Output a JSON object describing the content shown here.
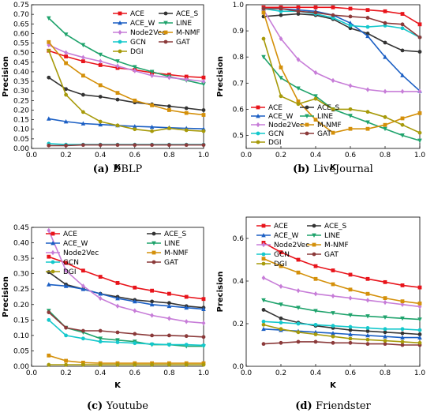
{
  "chart_data": [
    {
      "type": "line",
      "caption_letter": "(a)",
      "caption_text": "DBLP",
      "xlabel": "K",
      "ylabel": "Precision",
      "xlim": [
        0.0,
        1.0
      ],
      "ylim": [
        0.0,
        0.75
      ],
      "xticks": [
        "0.0",
        "0.2",
        "0.4",
        "0.6",
        "0.8",
        "1.0"
      ],
      "yticks": [
        "0.00",
        "0.05",
        "0.10",
        "0.15",
        "0.20",
        "0.25",
        "0.30",
        "0.35",
        "0.40",
        "0.45",
        "0.50",
        "0.55",
        "0.60",
        "0.65",
        "0.70",
        "0.75"
      ],
      "ytick_values": [
        0.0,
        0.05,
        0.1,
        0.15,
        0.2,
        0.25,
        0.3,
        0.35,
        0.4,
        0.45,
        0.5,
        0.55,
        0.6,
        0.65,
        0.7,
        0.75
      ],
      "legend_position": "top-right",
      "x": [
        0.1,
        0.2,
        0.3,
        0.4,
        0.5,
        0.6,
        0.7,
        0.8,
        0.9,
        1.0
      ],
      "series": [
        {
          "name": "ACE",
          "color": "#e8141b",
          "values": [
            0.51,
            0.48,
            0.455,
            0.435,
            0.42,
            0.41,
            0.395,
            0.385,
            0.375,
            0.37
          ]
        },
        {
          "name": "ACE_S",
          "color": "#333333",
          "values": [
            0.37,
            0.31,
            0.28,
            0.27,
            0.255,
            0.24,
            0.23,
            0.22,
            0.21,
            0.2
          ]
        },
        {
          "name": "ACE_W",
          "color": "#1b5fc4",
          "values": [
            0.155,
            0.14,
            0.13,
            0.125,
            0.12,
            0.115,
            0.112,
            0.108,
            0.105,
            0.102
          ]
        },
        {
          "name": "LINE",
          "color": "#1fa36c",
          "values": [
            0.68,
            0.595,
            0.54,
            0.49,
            0.455,
            0.425,
            0.4,
            0.375,
            0.355,
            0.335
          ]
        },
        {
          "name": "Node2Vec",
          "color": "#c77dd8",
          "values": [
            0.54,
            0.5,
            0.475,
            0.455,
            0.43,
            0.405,
            0.38,
            0.37,
            0.36,
            0.35
          ]
        },
        {
          "name": "M-NMF",
          "color": "#d4900a",
          "values": [
            0.555,
            0.445,
            0.38,
            0.33,
            0.29,
            0.25,
            0.225,
            0.2,
            0.185,
            0.175
          ]
        },
        {
          "name": "GCN",
          "color": "#14c8cc",
          "values": [
            0.025,
            0.02,
            0.02,
            0.02,
            0.02,
            0.02,
            0.02,
            0.02,
            0.02,
            0.02
          ]
        },
        {
          "name": "GAT",
          "color": "#8b3a3a",
          "values": [
            0.015,
            0.015,
            0.018,
            0.018,
            0.018,
            0.018,
            0.018,
            0.018,
            0.018,
            0.018
          ]
        },
        {
          "name": "DGI",
          "color": "#a79a0a",
          "values": [
            0.51,
            0.28,
            0.19,
            0.14,
            0.12,
            0.1,
            0.09,
            0.105,
            0.095,
            0.09
          ]
        }
      ]
    },
    {
      "type": "line",
      "caption_letter": "(b)",
      "caption_text": "LiveJournal",
      "xlabel": "K",
      "ylabel": "Precision",
      "xlim": [
        0.0,
        1.0
      ],
      "ylim": [
        0.45,
        1.0
      ],
      "xticks": [
        "0.0",
        "0.2",
        "0.4",
        "0.6",
        "0.8",
        "1.0"
      ],
      "yticks": [
        "0.5",
        "0.6",
        "0.7",
        "0.8",
        "0.9",
        "1.0"
      ],
      "ytick_values": [
        0.5,
        0.6,
        0.7,
        0.8,
        0.9,
        1.0
      ],
      "legend_position": "bottom-left",
      "x": [
        0.1,
        0.2,
        0.3,
        0.4,
        0.5,
        0.6,
        0.7,
        0.8,
        0.9,
        1.0
      ],
      "series": [
        {
          "name": "ACE",
          "color": "#e8141b",
          "values": [
            0.99,
            0.99,
            0.99,
            0.99,
            0.99,
            0.985,
            0.98,
            0.975,
            0.965,
            0.925
          ]
        },
        {
          "name": "ACE_S",
          "color": "#333333",
          "values": [
            0.955,
            0.96,
            0.965,
            0.96,
            0.945,
            0.91,
            0.89,
            0.855,
            0.825,
            0.82
          ]
        },
        {
          "name": "ACE_W",
          "color": "#1b5fc4",
          "values": [
            0.985,
            0.985,
            0.98,
            0.975,
            0.96,
            0.93,
            0.88,
            0.8,
            0.73,
            0.67
          ]
        },
        {
          "name": "LINE",
          "color": "#1fa36c",
          "values": [
            0.8,
            0.72,
            0.68,
            0.65,
            0.6,
            0.575,
            0.55,
            0.525,
            0.5,
            0.48
          ]
        },
        {
          "name": "Node2Vec",
          "color": "#c77dd8",
          "values": [
            0.98,
            0.87,
            0.79,
            0.74,
            0.71,
            0.69,
            0.675,
            0.668,
            0.668,
            0.668
          ]
        },
        {
          "name": "M-NMF",
          "color": "#d4900a",
          "values": [
            0.97,
            0.76,
            0.63,
            0.56,
            0.51,
            0.525,
            0.525,
            0.54,
            0.565,
            0.585
          ]
        },
        {
          "name": "GCN",
          "color": "#14c8cc",
          "values": [
            0.985,
            0.975,
            0.975,
            0.965,
            0.95,
            0.92,
            0.915,
            0.92,
            0.91,
            0.875
          ]
        },
        {
          "name": "GAT",
          "color": "#8b3a3a",
          "values": [
            0.985,
            0.985,
            0.975,
            0.97,
            0.96,
            0.955,
            0.95,
            0.93,
            0.925,
            0.875
          ]
        },
        {
          "name": "DGI",
          "color": "#a79a0a",
          "values": [
            0.87,
            0.65,
            0.62,
            0.64,
            0.6,
            0.6,
            0.59,
            0.57,
            0.54,
            0.51
          ]
        }
      ]
    },
    {
      "type": "line",
      "caption_letter": "(c)",
      "caption_text": "Youtube",
      "xlabel": "K",
      "ylabel": "Precision",
      "xlim": [
        0.0,
        1.0
      ],
      "ylim": [
        0.0,
        0.45
      ],
      "xticks": [
        "0.0",
        "0.2",
        "0.4",
        "0.6",
        "0.8",
        "1.0"
      ],
      "yticks": [
        "0.00",
        "0.05",
        "0.10",
        "0.15",
        "0.20",
        "0.25",
        "0.30",
        "0.35",
        "0.40",
        "0.45"
      ],
      "ytick_values": [
        0.0,
        0.05,
        0.1,
        0.15,
        0.2,
        0.25,
        0.3,
        0.35,
        0.4,
        0.45
      ],
      "legend_position": "top-right",
      "x": [
        0.1,
        0.2,
        0.3,
        0.4,
        0.5,
        0.6,
        0.7,
        0.8,
        0.9,
        1.0
      ],
      "series": [
        {
          "name": "ACE",
          "color": "#e8141b",
          "values": [
            0.355,
            0.335,
            0.31,
            0.29,
            0.27,
            0.255,
            0.245,
            0.235,
            0.225,
            0.218
          ]
        },
        {
          "name": "ACE_S",
          "color": "#333333",
          "values": [
            0.305,
            0.265,
            0.25,
            0.235,
            0.225,
            0.215,
            0.21,
            0.205,
            0.195,
            0.19
          ]
        },
        {
          "name": "ACE_W",
          "color": "#1b5fc4",
          "values": [
            0.265,
            0.26,
            0.25,
            0.235,
            0.22,
            0.21,
            0.2,
            0.195,
            0.19,
            0.185
          ]
        },
        {
          "name": "LINE",
          "color": "#1fa36c",
          "values": [
            0.18,
            0.125,
            0.11,
            0.09,
            0.085,
            0.08,
            0.07,
            0.07,
            0.065,
            0.065
          ]
        },
        {
          "name": "Node2Vec",
          "color": "#c77dd8",
          "values": [
            0.44,
            0.31,
            0.26,
            0.22,
            0.195,
            0.18,
            0.165,
            0.155,
            0.145,
            0.14
          ]
        },
        {
          "name": "M-NMF",
          "color": "#d4900a",
          "values": [
            0.035,
            0.018,
            0.012,
            0.01,
            0.01,
            0.01,
            0.01,
            0.01,
            0.01,
            0.01
          ]
        },
        {
          "name": "GCN",
          "color": "#14c8cc",
          "values": [
            0.15,
            0.1,
            0.09,
            0.08,
            0.078,
            0.075,
            0.072,
            0.07,
            0.07,
            0.068
          ]
        },
        {
          "name": "GAT",
          "color": "#8b3a3a",
          "values": [
            0.175,
            0.125,
            0.115,
            0.115,
            0.11,
            0.105,
            0.1,
            0.1,
            0.098,
            0.095
          ]
        },
        {
          "name": "DGI",
          "color": "#a79a0a",
          "values": [
            0.005,
            0.005,
            0.005,
            0.005,
            0.005,
            0.005,
            0.005,
            0.005,
            0.005,
            0.005
          ]
        }
      ]
    },
    {
      "type": "line",
      "caption_letter": "(d)",
      "caption_text": "Friendster",
      "xlabel": "K",
      "ylabel": "Precision",
      "xlim": [
        0.0,
        1.0
      ],
      "ylim": [
        0.0,
        0.7
      ],
      "xticks": [
        "0.0",
        "0.2",
        "0.4",
        "0.6",
        "0.8",
        "1.0"
      ],
      "yticks": [
        "0.0",
        "0.2",
        "0.4",
        "0.6"
      ],
      "ytick_values": [
        0.0,
        0.2,
        0.4,
        0.6
      ],
      "legend_position": "top-right",
      "x": [
        0.1,
        0.2,
        0.3,
        0.4,
        0.5,
        0.6,
        0.7,
        0.8,
        0.9,
        1.0
      ],
      "series": [
        {
          "name": "ACE",
          "color": "#e8141b",
          "values": [
            0.58,
            0.535,
            0.5,
            0.47,
            0.45,
            0.43,
            0.41,
            0.395,
            0.38,
            0.37
          ]
        },
        {
          "name": "ACE_S",
          "color": "#333333",
          "values": [
            0.265,
            0.225,
            0.205,
            0.19,
            0.18,
            0.17,
            0.165,
            0.16,
            0.155,
            0.15
          ]
        },
        {
          "name": "ACE_W",
          "color": "#1b5fc4",
          "values": [
            0.175,
            0.17,
            0.165,
            0.16,
            0.155,
            0.15,
            0.145,
            0.14,
            0.135,
            0.135
          ]
        },
        {
          "name": "LINE",
          "color": "#1fa36c",
          "values": [
            0.31,
            0.29,
            0.275,
            0.26,
            0.25,
            0.24,
            0.235,
            0.23,
            0.225,
            0.22
          ]
        },
        {
          "name": "Node2Vec",
          "color": "#c77dd8",
          "values": [
            0.415,
            0.375,
            0.355,
            0.34,
            0.33,
            0.32,
            0.31,
            0.3,
            0.29,
            0.28
          ]
        },
        {
          "name": "M-NMF",
          "color": "#d4900a",
          "values": [
            0.505,
            0.47,
            0.44,
            0.41,
            0.385,
            0.36,
            0.34,
            0.32,
            0.305,
            0.295
          ]
        },
        {
          "name": "GCN",
          "color": "#14c8cc",
          "values": [
            0.21,
            0.205,
            0.2,
            0.195,
            0.19,
            0.185,
            0.18,
            0.175,
            0.175,
            0.17
          ]
        },
        {
          "name": "GAT",
          "color": "#8b3a3a",
          "values": [
            0.105,
            0.11,
            0.115,
            0.115,
            0.11,
            0.11,
            0.105,
            0.105,
            0.1,
            0.1
          ]
        },
        {
          "name": "DGI",
          "color": "#a79a0a",
          "values": [
            0.195,
            0.175,
            0.16,
            0.15,
            0.14,
            0.13,
            0.125,
            0.12,
            0.115,
            0.11
          ]
        }
      ]
    }
  ]
}
